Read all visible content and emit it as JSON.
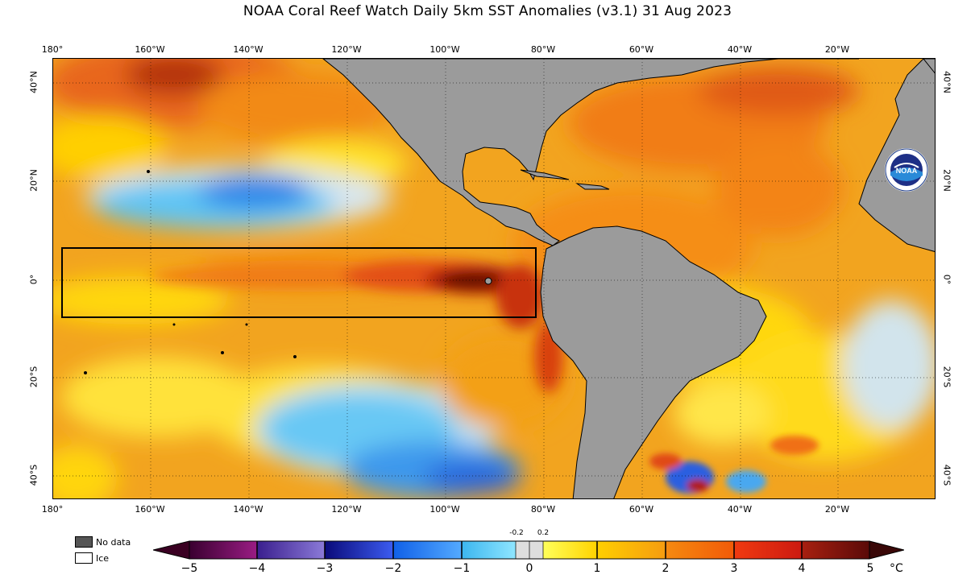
{
  "title": "NOAA Coral Reef Watch Daily 5km SST Anomalies  (v3.1)   31 Aug 2023",
  "map": {
    "longitude_ticks": [
      "180°",
      "160°W",
      "140°W",
      "120°W",
      "100°W",
      "80°W",
      "60°W",
      "40°W",
      "20°W"
    ],
    "latitude_ticks_left": [
      "40°N",
      "20°N",
      "0°",
      "20°S",
      "40°S"
    ],
    "latitude_ticks_right": [
      "40°N",
      "20°N",
      "0°",
      "20°S",
      "40°S"
    ],
    "highlight_box": "Niño 3.4 / equatorial Pacific region outline",
    "logo_text": "NOAA",
    "colors": {
      "land": "#9b9b9b",
      "nodata": "#555555",
      "ice": "#ffffff",
      "neutral": "#dcdcdc"
    }
  },
  "legend": {
    "nodata_label": "No data",
    "ice_label": "Ice"
  },
  "colorbar": {
    "ticks": [
      "−5",
      "−4",
      "−3",
      "−2",
      "−1",
      "0",
      "1",
      "2",
      "3",
      "4",
      "5"
    ],
    "small_ticks": [
      "-0.2",
      "0.2"
    ],
    "unit": "°C",
    "segments": [
      {
        "from": "#3a0030",
        "to": "#9a1c84"
      },
      {
        "from": "#3a1f8e",
        "to": "#8b7ad8"
      },
      {
        "from": "#0a0a7a",
        "to": "#3c5cf0"
      },
      {
        "from": "#1060e8",
        "to": "#54aaff"
      },
      {
        "from": "#3cb6f0",
        "to": "#8fe6ff"
      },
      {
        "from": "#dedede",
        "to": "#dedede"
      },
      {
        "from": "#ffff5a",
        "to": "#ffd300"
      },
      {
        "from": "#ffcf00",
        "to": "#f59c10"
      },
      {
        "from": "#f58a10",
        "to": "#f25a08"
      },
      {
        "from": "#f03a10",
        "to": "#cc1a10"
      },
      {
        "from": "#a82010",
        "to": "#5a0a08"
      }
    ]
  }
}
